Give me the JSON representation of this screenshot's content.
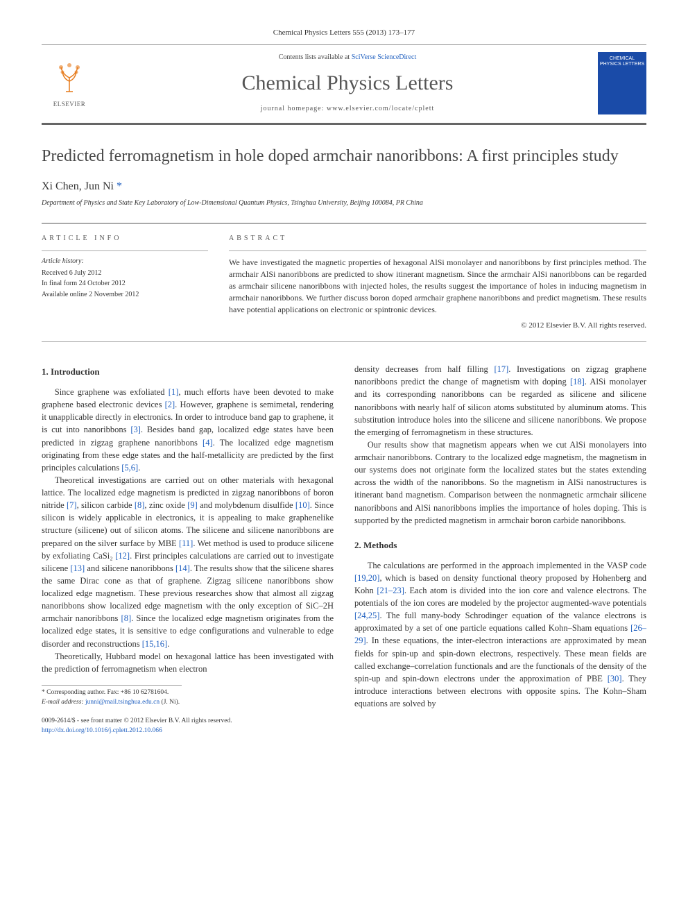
{
  "journal_ref": "Chemical Physics Letters 555 (2013) 173–177",
  "header": {
    "contents_prefix": "Contents lists available at ",
    "contents_link": "SciVerse ScienceDirect",
    "journal_name": "Chemical Physics Letters",
    "homepage_prefix": "journal homepage: ",
    "homepage_url": "www.elsevier.com/locate/cplett",
    "publisher": "ELSEVIER",
    "cover_text": "CHEMICAL PHYSICS LETTERS"
  },
  "article": {
    "title": "Predicted ferromagnetism in hole doped armchair nanoribbons: A first principles study",
    "authors_html": "Xi Chen, Jun Ni",
    "corr_marker": "*",
    "affiliation": "Department of Physics and State Key Laboratory of Low-Dimensional Quantum Physics, Tsinghua University, Beijing 100084, PR China"
  },
  "article_info": {
    "heading": "ARTICLE INFO",
    "history_label": "Article history:",
    "received": "Received 6 July 2012",
    "final_form": "In final form 24 October 2012",
    "online": "Available online 2 November 2012"
  },
  "abstract": {
    "heading": "ABSTRACT",
    "text": "We have investigated the magnetic properties of hexagonal AlSi monolayer and nanoribbons by first principles method. The armchair AlSi nanoribbons are predicted to show itinerant magnetism. Since the armchair AlSi nanoribbons can be regarded as armchair silicene nanoribbons with injected holes, the results suggest the importance of holes in inducing magnetism in armchair nanoribbons. We further discuss boron doped armchair graphene nanoribbons and predict magnetism. These results have potential applications on electronic or spintronic devices.",
    "copyright": "© 2012 Elsevier B.V. All rights reserved."
  },
  "sections": {
    "intro_heading": "1. Introduction",
    "intro_p1": "Since graphene was exfoliated [1], much efforts have been devoted to make graphene based electronic devices [2]. However, graphene is semimetal, rendering it unapplicable directly in electronics. In order to introduce band gap to graphene, it is cut into nanoribbons [3]. Besides band gap, localized edge states have been predicted in zigzag graphene nanoribbons [4]. The localized edge magnetism originating from these edge states and the half-metallicity are predicted by the first principles calculations [5,6].",
    "intro_p2": "Theoretical investigations are carried out on other materials with hexagonal lattice. The localized edge magnetism is predicted in zigzag nanoribbons of boron nitride [7], silicon carbide [8], zinc oxide [9] and molybdenum disulfide [10]. Since silicon is widely applicable in electronics, it is appealing to make graphenelike structure (silicene) out of silicon atoms. The silicene and silicene nanoribbons are prepared on the silver surface by MBE [11]. Wet method is used to produce silicene by exfoliating CaSi₂ [12]. First principles calculations are carried out to investigate silicene [13] and silicene nanoribbons [14]. The results show that the silicene shares the same Dirac cone as that of graphene. Zigzag silicene nanoribbons show localized edge magnetism. These previous researches show that almost all zigzag nanoribbons show localized edge magnetism with the only exception of SiC–2H armchair nanoribbons [8]. Since the localized edge magnetism originates from the localized edge states, it is sensitive to edge configurations and vulnerable to edge disorder and reconstructions [15,16].",
    "intro_p3": "Theoretically, Hubbard model on hexagonal lattice has been investigated with the prediction of ferromagnetism when electron",
    "intro_p3b": "density decreases from half filling [17]. Investigations on zigzag graphene nanoribbons predict the change of magnetism with doping [18]. AlSi monolayer and its corresponding nanoribbons can be regarded as silicene and silicene nanoribbons with nearly half of silicon atoms substituted by aluminum atoms. This substitution introduce holes into the silicene and silicene nanoribbons. We propose the emerging of ferromagnetism in these structures.",
    "intro_p4": "Our results show that magnetism appears when we cut AlSi monolayers into armchair nanoribbons. Contrary to the localized edge magnetism, the magnetism in our systems does not originate form the localized states but the states extending across the width of the nanoribbons. So the magnetism in AlSi nanostructures is itinerant band magnetism. Comparison between the nonmagnetic armchair silicene nanoribbons and AlSi nanoribbons implies the importance of holes doping. This is supported by the predicted magnetism in armchair boron carbide nanoribbons.",
    "methods_heading": "2. Methods",
    "methods_p1": "The calculations are performed in the approach implemented in the VASP code [19,20], which is based on density functional theory proposed by Hohenberg and Kohn [21–23]. Each atom is divided into the ion core and valence electrons. The potentials of the ion cores are modeled by the projector augmented-wave potentials [24,25]. The full many-body Schrodinger equation of the valance electrons is approximated by a set of one particle equations called Kohn–Sham equations [26–29]. In these equations, the inter-electron interactions are approximated by mean fields for spin-up and spin-down electrons, respectively. These mean fields are called exchange–correlation functionals and are the functionals of the density of the spin-up and spin-down electrons under the approximation of PBE [30]. They introduce interactions between electrons with opposite spins. The Kohn–Sham equations are solved by"
  },
  "footnote": {
    "corr": "* Corresponding author. Fax: +86 10 62781604.",
    "email_label": "E-mail address:",
    "email": "junni@mail.tsinghua.edu.cn",
    "email_who": "(J. Ni)."
  },
  "footer": {
    "left1": "0009-2614/$ - see front matter © 2012 Elsevier B.V. All rights reserved.",
    "left2": "http://dx.doi.org/10.1016/j.cplett.2012.10.066"
  },
  "colors": {
    "link": "#2060c0",
    "rule": "#666666",
    "cover_bg": "#1a4ba8",
    "text": "#333333"
  }
}
